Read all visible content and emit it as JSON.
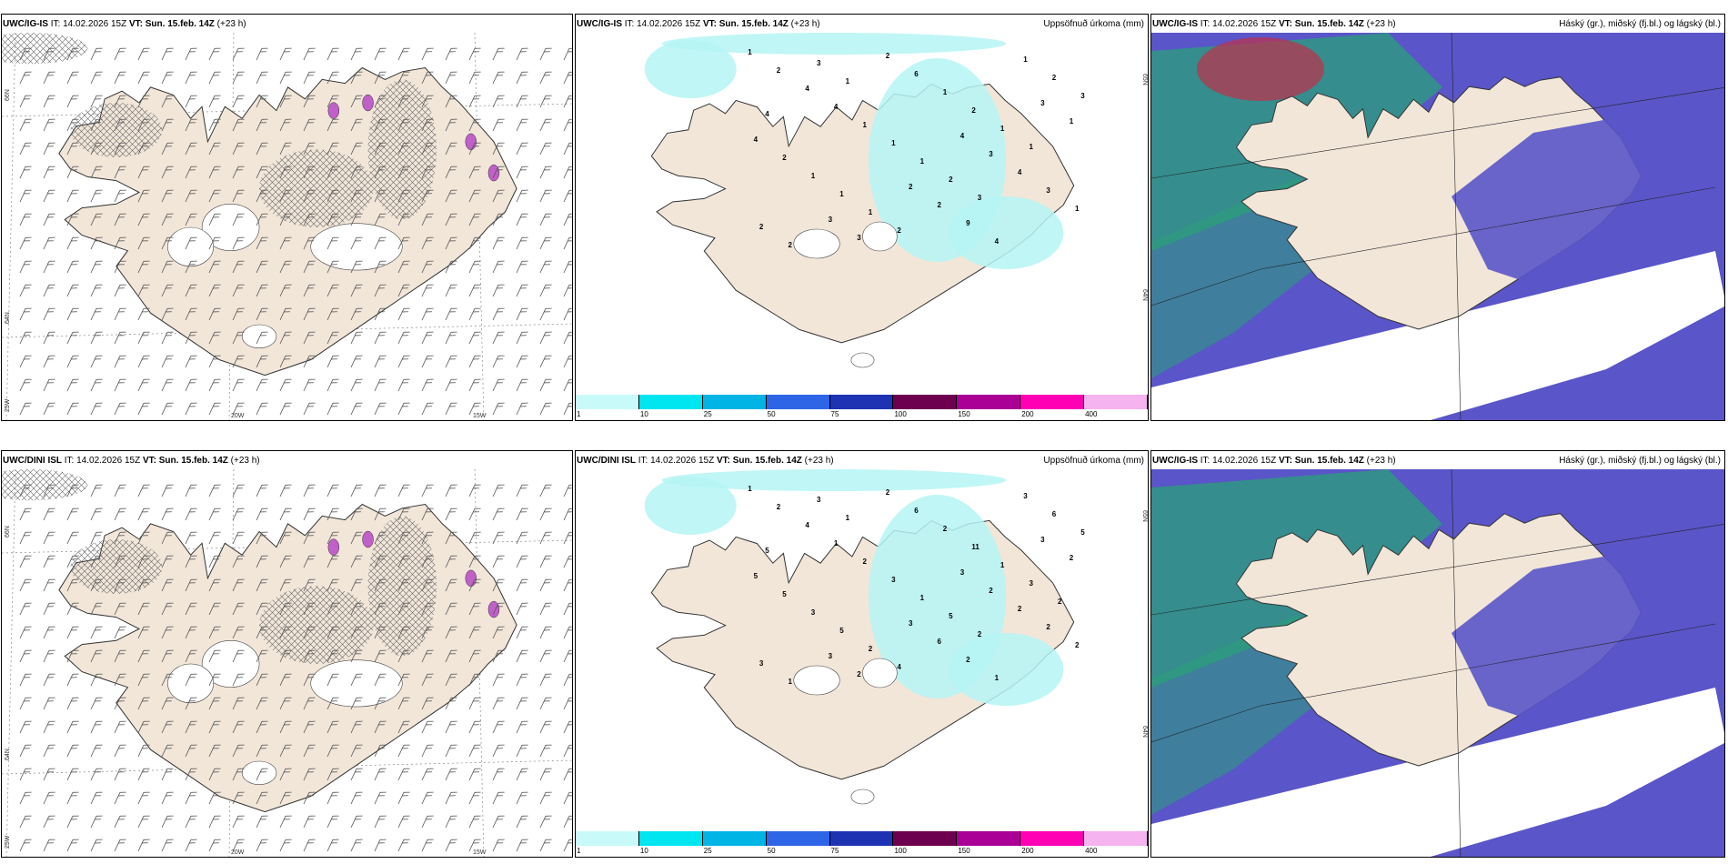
{
  "rows": [
    {
      "model_label": "UWC/IG-IS",
      "wind_panel_model_label": "UWC/IG-IS",
      "cloud_panel_model_label": "UWC/IG-IS",
      "it_label": "IT:",
      "it_value": "14.02.2026 15Z",
      "vt_label": "VT:",
      "vt_value": "Sun. 15.feb. 14Z",
      "lead": "(+23 h)",
      "precip_points": [
        "1",
        "4",
        "3",
        "3",
        "2",
        "2",
        "3",
        "3",
        "1",
        "2",
        "4",
        "4",
        "2",
        "4",
        "9",
        "4",
        "3",
        "6",
        "2",
        "4",
        "1",
        "1",
        "1",
        "1",
        "1",
        "1",
        "2",
        "2",
        "1",
        "2",
        "1",
        "2",
        "1",
        "1",
        "3",
        "2",
        "3",
        "1",
        "2",
        "4",
        "3",
        "1"
      ]
    },
    {
      "model_label": "UWC/DINI ISL",
      "wind_panel_model_label": "UWC/DINI ISL",
      "cloud_panel_model_label": "UWC/IG-IS",
      "it_label": "IT:",
      "it_value": "14.02.2026 15Z",
      "vt_label": "VT:",
      "vt_value": "Sun. 15.feb. 14Z",
      "lead": "(+23 h)",
      "precip_points": [
        "1",
        "3",
        "3",
        "3",
        "3",
        "2",
        "2",
        "2",
        "2",
        "6",
        "4",
        "2",
        "2",
        "5",
        "2",
        "1",
        "2",
        "6",
        "5",
        "1",
        "2",
        "2",
        "2",
        "3",
        "3",
        "3",
        "3",
        "11",
        "5",
        "6",
        "1",
        "1",
        "1",
        "2",
        "5",
        "5",
        "3",
        "3",
        "4",
        "5",
        "2",
        "1",
        "2"
      ]
    }
  ],
  "precip_panel_title": "Uppsöfnuð úrkoma (mm)",
  "cloud_panel_title": "Háský (gr.), miðský (fj.bl.) og lágský (bl.)",
  "wind_panel": {
    "lat_labels": [
      "66N",
      "64N"
    ],
    "lon_labels": [
      "25W",
      "20W",
      "15W"
    ]
  },
  "precip_panel": {
    "right_lat_labels": [
      "65N",
      "64N"
    ],
    "colorbar": {
      "ticks": [
        "1",
        "10",
        "25",
        "50",
        "75",
        "100",
        "150",
        "200",
        "400"
      ],
      "colors": [
        "#c8fafa",
        "#00e6f0",
        "#00b4e6",
        "#2e64e6",
        "#1e32b4",
        "#6e0050",
        "#aa0096",
        "#ff00b4",
        "#f5b4f0"
      ]
    }
  },
  "colors": {
    "land": "#f2e6d9",
    "sea": "#ffffff",
    "precip_light": "#b5f5f5",
    "snow_purple": "#c060c8",
    "high_cloud_gray": "#909090",
    "mid_cloud_blue": "#5a55c8",
    "low_cloud_green": "#2aa07a"
  }
}
